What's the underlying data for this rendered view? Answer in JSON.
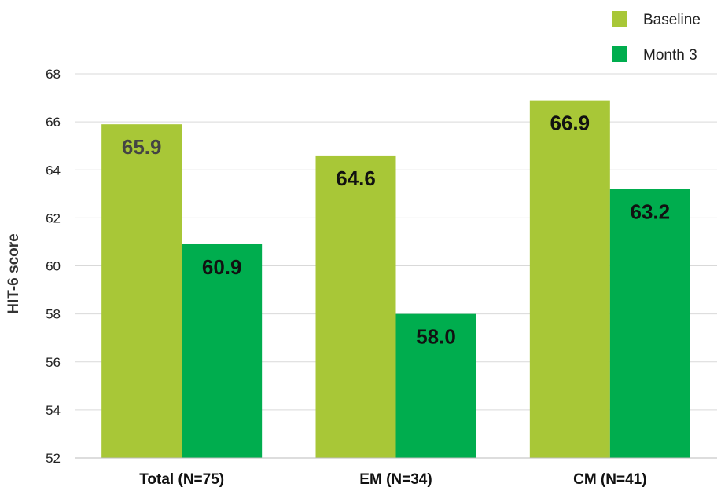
{
  "chart_data": {
    "type": "bar",
    "ylabel": "HIT-6 score",
    "ylim": [
      52,
      68
    ],
    "yticks": [
      52,
      54,
      56,
      58,
      60,
      62,
      64,
      66,
      68
    ],
    "grid": true,
    "legend_position": "top-right",
    "categories": [
      "Total (N=75)",
      "EM (N=34)",
      "CM (N=41)"
    ],
    "series": [
      {
        "name": "Baseline",
        "color": "#a8c737",
        "values": [
          65.9,
          64.6,
          66.9
        ],
        "labels": [
          "65.9",
          "64.6",
          "66.9"
        ],
        "label_colors": [
          "#444444",
          "#111111",
          "#111111"
        ]
      },
      {
        "name": "Month 3",
        "color": "#00ad4e",
        "values": [
          60.9,
          58.0,
          63.2
        ],
        "labels": [
          "60.9",
          "58.0",
          "63.2"
        ],
        "label_colors": [
          "#111111",
          "#111111",
          "#111111"
        ]
      }
    ]
  }
}
